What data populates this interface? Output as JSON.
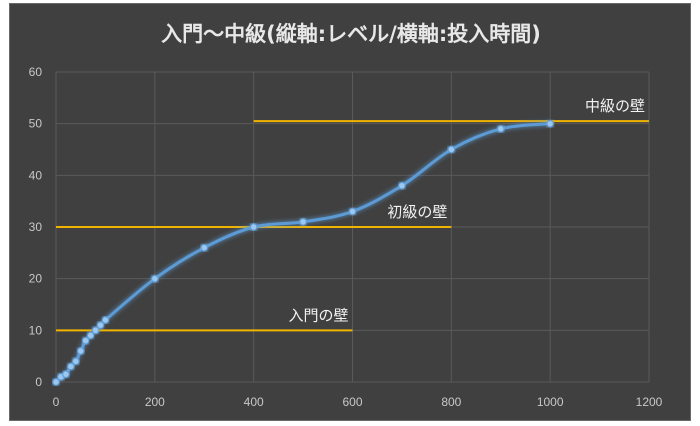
{
  "chart_data": {
    "type": "line",
    "title": "入門〜中級(縦軸:レベル/横軸:投入時間)",
    "xlabel": "",
    "ylabel": "",
    "xlim": [
      0,
      1200
    ],
    "ylim": [
      0,
      60
    ],
    "xticks": [
      0,
      200,
      400,
      600,
      800,
      1000,
      1200
    ],
    "yticks": [
      0,
      10,
      20,
      30,
      40,
      50,
      60
    ],
    "grid": true,
    "smooth": true,
    "series": [
      {
        "x": [
          0,
          10,
          20,
          30,
          40,
          50,
          60,
          70,
          80,
          90,
          100,
          200,
          300,
          400,
          500,
          600,
          700,
          800,
          900,
          1000
        ],
        "y": [
          0,
          1,
          1.5,
          3,
          4,
          6,
          8,
          9,
          10,
          11,
          12,
          20,
          26,
          30,
          31,
          33,
          38,
          45,
          49,
          50
        ],
        "color": "#5b9bd5"
      }
    ],
    "reference_lines": [
      {
        "label": "入門の壁",
        "y": 10,
        "x_from": 0,
        "x_to": 600,
        "color": "#f0b400"
      },
      {
        "label": "初級の壁",
        "y": 30,
        "x_from": 0,
        "x_to": 800,
        "color": "#f0b400"
      },
      {
        "label": "中級の壁",
        "y": 50.5,
        "x_from": 400,
        "x_to": 1200,
        "color": "#f0b400"
      }
    ]
  }
}
